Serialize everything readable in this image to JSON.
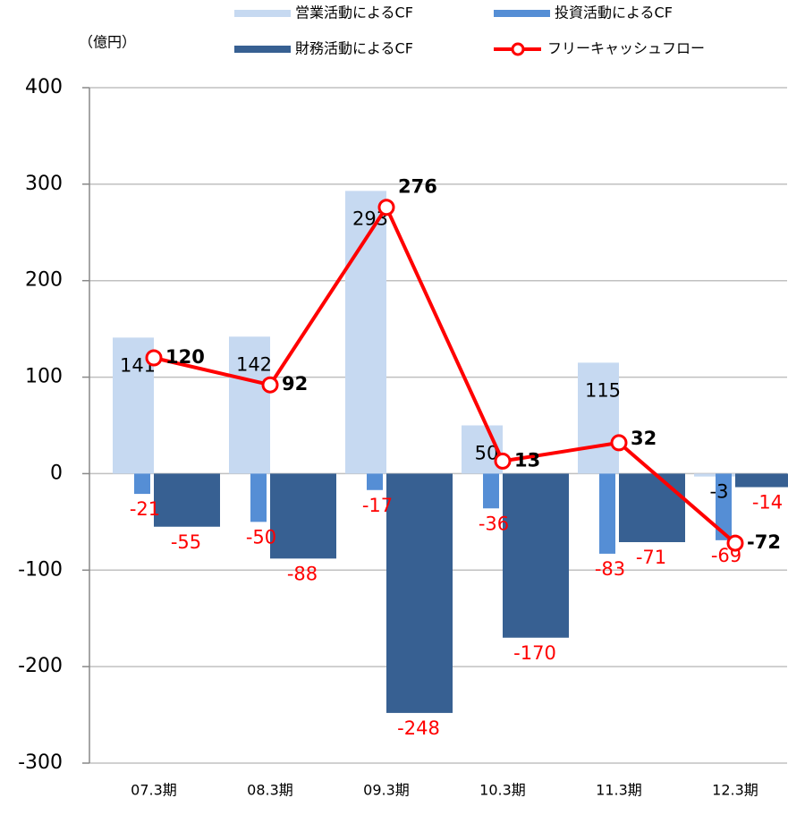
{
  "chart_data": {
    "type": "bar_line",
    "unit_label": "（億円）",
    "categories": [
      "07.3期",
      "08.3期",
      "09.3期",
      "10.3期",
      "11.3期",
      "12.3期"
    ],
    "series": [
      {
        "name": "営業活動によるCF",
        "type": "bar",
        "color": "#c6d9f1",
        "label_color": "#000000",
        "values": [
          141,
          142,
          293,
          50,
          115,
          -3
        ]
      },
      {
        "name": "投資活動によるCF",
        "type": "bar",
        "color": "#558ed5",
        "label_color": "#ff0000",
        "values": [
          -21,
          -50,
          -17,
          -36,
          -83,
          -69
        ]
      },
      {
        "name": "財務活動によるCF",
        "type": "bar",
        "color": "#376092",
        "label_color": "#ff0000",
        "values": [
          -55,
          -88,
          -248,
          -170,
          -71,
          -14
        ]
      },
      {
        "name": "フリーキャッシュフロー",
        "type": "line",
        "color": "#ff0000",
        "label_color": "#000000",
        "values": [
          120,
          92,
          276,
          13,
          32,
          -72
        ]
      }
    ],
    "ylim": [
      -300,
      400
    ],
    "yticks": [
      -300,
      -200,
      -100,
      0,
      100,
      200,
      300,
      400
    ],
    "grid": true
  }
}
